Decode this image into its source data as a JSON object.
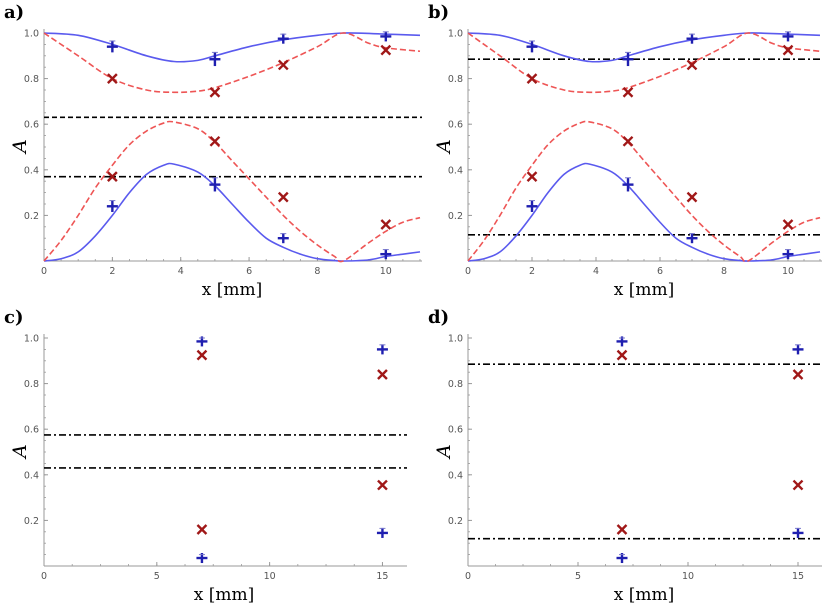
{
  "colors": {
    "blue": "#1f1fb0",
    "blue_curve": "#5a5aee",
    "red": "#a01818",
    "red_curve": "#ee5555",
    "black": "#000000",
    "axis": "#999999"
  },
  "chart_data": [
    {
      "panel": "a)",
      "type": "scatter",
      "xlabel": "x [mm]",
      "ylabel": "A",
      "xlim": [
        0,
        11
      ],
      "ylim": [
        0,
        1
      ],
      "xticks": [
        0,
        2,
        4,
        6,
        8,
        10
      ],
      "yticks": [
        0.2,
        0.4,
        0.6,
        0.8,
        1.0
      ],
      "tick_labels_x": [
        "0",
        "2",
        "4",
        "6",
        "8",
        "10"
      ],
      "tick_labels_y": [
        "0.2",
        "0.4",
        "0.6",
        "0.8",
        "1.0"
      ],
      "series": [
        {
          "name": "blue plus (upper)",
          "marker": "plus",
          "color": "blue",
          "x": [
            2,
            5,
            7,
            10
          ],
          "y": [
            0.94,
            0.885,
            0.975,
            0.985
          ],
          "err": [
            0.025,
            0.03,
            0.02,
            0.02
          ]
        },
        {
          "name": "blue plus (lower)",
          "marker": "plus",
          "color": "blue",
          "x": [
            2,
            5,
            7,
            10
          ],
          "y": [
            0.24,
            0.335,
            0.1,
            0.03
          ],
          "err": [
            0.025,
            0.03,
            0.02,
            0.02
          ]
        },
        {
          "name": "red cross (upper)",
          "marker": "cross",
          "color": "red",
          "x": [
            2,
            5,
            7,
            10
          ],
          "y": [
            0.8,
            0.74,
            0.86,
            0.925
          ]
        },
        {
          "name": "red cross (lower)",
          "marker": "cross",
          "color": "red",
          "x": [
            2,
            5,
            7,
            10
          ],
          "y": [
            0.37,
            0.525,
            0.28,
            0.16
          ]
        }
      ],
      "curves": [
        {
          "name": "blue solid lower",
          "style": "solid",
          "color": "blue_curve",
          "x": [
            0,
            0.5,
            1,
            1.5,
            2,
            2.5,
            3,
            3.5,
            3.8,
            4.5,
            5,
            5.5,
            6,
            6.5,
            7,
            7.5,
            8,
            8.5,
            8.8,
            9.5,
            10,
            10.5,
            11
          ],
          "y": [
            0,
            0.01,
            0.04,
            0.11,
            0.2,
            0.3,
            0.38,
            0.42,
            0.425,
            0.39,
            0.33,
            0.25,
            0.17,
            0.1,
            0.06,
            0.03,
            0.01,
            0.002,
            0,
            0.005,
            0.02,
            0.03,
            0.04
          ]
        },
        {
          "name": "blue solid upper",
          "style": "solid",
          "color": "blue_curve",
          "x": [
            0,
            1,
            2,
            3,
            3.8,
            4.5,
            5,
            6,
            7,
            8,
            8.8,
            10,
            11
          ],
          "y": [
            1,
            0.99,
            0.95,
            0.9,
            0.875,
            0.88,
            0.9,
            0.94,
            0.97,
            0.99,
            1,
            0.995,
            0.99
          ]
        },
        {
          "name": "red dashed lower",
          "style": "dashed",
          "color": "red_curve",
          "x": [
            0,
            0.5,
            1,
            1.5,
            2,
            2.5,
            3,
            3.5,
            3.8,
            4.5,
            5,
            5.5,
            6,
            6.5,
            7,
            7.5,
            8,
            8.5,
            8.75,
            9.5,
            10,
            10.5,
            11
          ],
          "y": [
            0,
            0.09,
            0.2,
            0.32,
            0.42,
            0.51,
            0.57,
            0.605,
            0.61,
            0.58,
            0.52,
            0.44,
            0.36,
            0.28,
            0.2,
            0.13,
            0.07,
            0.02,
            0,
            0.08,
            0.13,
            0.17,
            0.19
          ]
        },
        {
          "name": "red dashed upper",
          "style": "dashed",
          "color": "red_curve",
          "x": [
            0,
            1,
            2,
            3,
            3.8,
            4.5,
            5,
            6,
            7,
            8,
            8.75,
            9.5,
            10,
            11
          ],
          "y": [
            1,
            0.9,
            0.8,
            0.75,
            0.74,
            0.745,
            0.76,
            0.81,
            0.87,
            0.94,
            1,
            0.955,
            0.935,
            0.92
          ]
        }
      ],
      "hlines": [
        {
          "y": 0.63,
          "style": "dashed"
        },
        {
          "y": 0.37,
          "style": "dashdot"
        }
      ]
    },
    {
      "panel": "b)",
      "type": "scatter",
      "xlabel": "x [mm]",
      "ylabel": "A",
      "xlim": [
        0,
        11
      ],
      "ylim": [
        0,
        1
      ],
      "xticks": [
        0,
        2,
        4,
        6,
        8,
        10
      ],
      "yticks": [
        0.2,
        0.4,
        0.6,
        0.8,
        1.0
      ],
      "tick_labels_x": [
        "0",
        "2",
        "4",
        "6",
        "8",
        "10"
      ],
      "tick_labels_y": [
        "0.2",
        "0.4",
        "0.6",
        "0.8",
        "1.0"
      ],
      "series": [
        {
          "name": "blue plus (upper)",
          "marker": "plus",
          "color": "blue",
          "x": [
            2,
            5,
            7,
            10
          ],
          "y": [
            0.94,
            0.885,
            0.975,
            0.985
          ],
          "err": [
            0.025,
            0.03,
            0.02,
            0.02
          ]
        },
        {
          "name": "blue plus (lower)",
          "marker": "plus",
          "color": "blue",
          "x": [
            2,
            5,
            7,
            10
          ],
          "y": [
            0.24,
            0.335,
            0.1,
            0.03
          ],
          "err": [
            0.025,
            0.03,
            0.02,
            0.02
          ]
        },
        {
          "name": "red cross (upper)",
          "marker": "cross",
          "color": "red",
          "x": [
            2,
            5,
            7,
            10
          ],
          "y": [
            0.8,
            0.74,
            0.86,
            0.925
          ]
        },
        {
          "name": "red cross (lower)",
          "marker": "cross",
          "color": "red",
          "x": [
            2,
            5,
            7,
            10
          ],
          "y": [
            0.37,
            0.525,
            0.28,
            0.16
          ]
        }
      ],
      "curves": [
        {
          "name": "blue solid lower",
          "style": "solid",
          "color": "blue_curve",
          "x": [
            0,
            0.5,
            1,
            1.5,
            2,
            2.5,
            3,
            3.5,
            3.8,
            4.5,
            5,
            5.5,
            6,
            6.5,
            7,
            7.5,
            8,
            8.5,
            8.8,
            9.5,
            10,
            10.5,
            11
          ],
          "y": [
            0,
            0.01,
            0.04,
            0.11,
            0.2,
            0.3,
            0.38,
            0.42,
            0.425,
            0.39,
            0.33,
            0.25,
            0.17,
            0.1,
            0.06,
            0.03,
            0.01,
            0.002,
            0,
            0.005,
            0.02,
            0.03,
            0.04
          ]
        },
        {
          "name": "blue solid upper",
          "style": "solid",
          "color": "blue_curve",
          "x": [
            0,
            1,
            2,
            3,
            3.8,
            4.5,
            5,
            6,
            7,
            8,
            8.8,
            10,
            11
          ],
          "y": [
            1,
            0.99,
            0.95,
            0.9,
            0.875,
            0.88,
            0.9,
            0.94,
            0.97,
            0.99,
            1,
            0.995,
            0.99
          ]
        },
        {
          "name": "red dashed lower",
          "style": "dashed",
          "color": "red_curve",
          "x": [
            0,
            0.5,
            1,
            1.5,
            2,
            2.5,
            3,
            3.5,
            3.8,
            4.5,
            5,
            5.5,
            6,
            6.5,
            7,
            7.5,
            8,
            8.5,
            8.75,
            9.5,
            10,
            10.5,
            11
          ],
          "y": [
            0,
            0.09,
            0.2,
            0.32,
            0.42,
            0.51,
            0.57,
            0.605,
            0.61,
            0.58,
            0.52,
            0.44,
            0.36,
            0.28,
            0.2,
            0.13,
            0.07,
            0.02,
            0,
            0.08,
            0.13,
            0.17,
            0.19
          ]
        },
        {
          "name": "red dashed upper",
          "style": "dashed",
          "color": "red_curve",
          "x": [
            0,
            1,
            2,
            3,
            3.8,
            4.5,
            5,
            6,
            7,
            8,
            8.75,
            9.5,
            10,
            11
          ],
          "y": [
            1,
            0.9,
            0.8,
            0.75,
            0.74,
            0.745,
            0.76,
            0.81,
            0.87,
            0.94,
            1,
            0.955,
            0.935,
            0.92
          ]
        }
      ],
      "hlines": [
        {
          "y": 0.885,
          "style": "dashdot"
        },
        {
          "y": 0.115,
          "style": "dashdot"
        }
      ]
    },
    {
      "panel": "c)",
      "type": "scatter",
      "xlabel": "x [mm]",
      "ylabel": "A",
      "xlim": [
        0,
        16
      ],
      "ylim": [
        0,
        1
      ],
      "xticks": [
        0,
        5,
        10,
        15
      ],
      "yticks": [
        0.2,
        0.4,
        0.6,
        0.8,
        1.0
      ],
      "tick_labels_x": [
        "0",
        "5",
        "10",
        "15"
      ],
      "tick_labels_y": [
        "0.2",
        "0.4",
        "0.6",
        "0.8",
        "1.0"
      ],
      "series": [
        {
          "name": "blue plus",
          "marker": "plus",
          "color": "blue",
          "x": [
            7,
            7,
            15,
            15
          ],
          "y": [
            0.985,
            0.035,
            0.95,
            0.145
          ],
          "err": [
            0.015,
            0.015,
            0.02,
            0.02
          ]
        },
        {
          "name": "red cross",
          "marker": "cross",
          "color": "red",
          "x": [
            7,
            7,
            15,
            15
          ],
          "y": [
            0.925,
            0.16,
            0.84,
            0.355
          ]
        }
      ],
      "curves": [],
      "hlines": [
        {
          "y": 0.575,
          "style": "dashdot"
        },
        {
          "y": 0.43,
          "style": "dashdot"
        }
      ]
    },
    {
      "panel": "d)",
      "type": "scatter",
      "xlabel": "x [mm]",
      "ylabel": "A",
      "xlim": [
        0,
        16
      ],
      "ylim": [
        0,
        1
      ],
      "xticks": [
        0,
        5,
        10,
        15
      ],
      "yticks": [
        0.2,
        0.4,
        0.6,
        0.8,
        1.0
      ],
      "tick_labels_x": [
        "0",
        "5",
        "10",
        "15"
      ],
      "tick_labels_y": [
        "0.2",
        "0.4",
        "0.6",
        "0.8",
        "1.0"
      ],
      "series": [
        {
          "name": "blue plus",
          "marker": "plus",
          "color": "blue",
          "x": [
            7,
            7,
            15,
            15
          ],
          "y": [
            0.985,
            0.035,
            0.95,
            0.145
          ],
          "err": [
            0.015,
            0.015,
            0.02,
            0.02
          ]
        },
        {
          "name": "red cross",
          "marker": "cross",
          "color": "red",
          "x": [
            7,
            7,
            15,
            15
          ],
          "y": [
            0.925,
            0.16,
            0.84,
            0.355
          ]
        }
      ],
      "curves": [],
      "hlines": [
        {
          "y": 0.885,
          "style": "dashdot"
        },
        {
          "y": 0.12,
          "style": "dashdot"
        }
      ]
    }
  ]
}
